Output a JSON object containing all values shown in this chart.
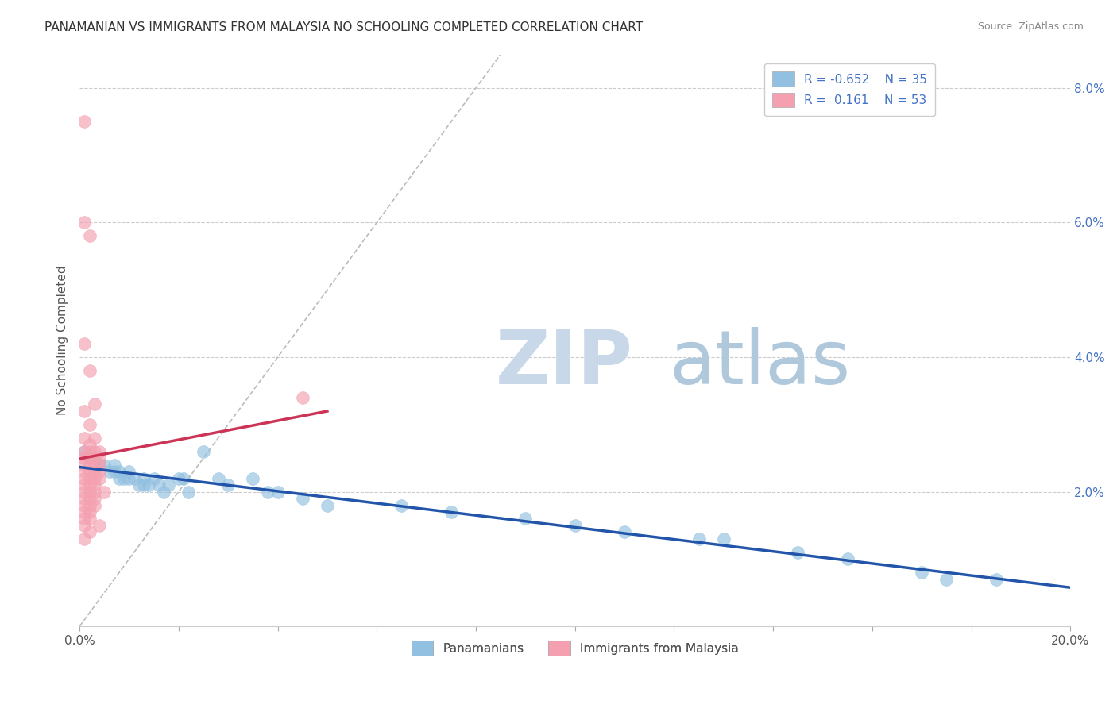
{
  "title": "PANAMANIAN VS IMMIGRANTS FROM MALAYSIA NO SCHOOLING COMPLETED CORRELATION CHART",
  "source": "Source: ZipAtlas.com",
  "ylabel": "No Schooling Completed",
  "xlim": [
    0.0,
    0.2
  ],
  "ylim": [
    0.0,
    0.085
  ],
  "xticks": [
    0.0,
    0.02,
    0.04,
    0.06,
    0.08,
    0.1,
    0.12,
    0.14,
    0.16,
    0.18,
    0.2
  ],
  "yticks": [
    0.0,
    0.02,
    0.04,
    0.06,
    0.08
  ],
  "ytick_labels": [
    "",
    "2.0%",
    "4.0%",
    "6.0%",
    "8.0%"
  ],
  "blue_color": "#92c0e0",
  "blue_line_color": "#2255aa",
  "pink_color": "#f4a0b0",
  "pink_line_color": "#cc3355",
  "diag_color": "#bbbbbb",
  "background_color": "#ffffff",
  "watermark_zip": "ZIP",
  "watermark_atlas": "atlas",
  "watermark_color_zip": "#c8d8e8",
  "watermark_color_atlas": "#b0c8dc",
  "title_fontsize": 11,
  "axis_label_color": "#4472c4",
  "grid_color": "#cccccc",
  "blue_scatter": [
    [
      0.001,
      0.026
    ],
    [
      0.002,
      0.025
    ],
    [
      0.003,
      0.025
    ],
    [
      0.004,
      0.024
    ],
    [
      0.005,
      0.024
    ],
    [
      0.006,
      0.023
    ],
    [
      0.007,
      0.024
    ],
    [
      0.007,
      0.023
    ],
    [
      0.008,
      0.023
    ],
    [
      0.008,
      0.022
    ],
    [
      0.009,
      0.022
    ],
    [
      0.01,
      0.022
    ],
    [
      0.01,
      0.023
    ],
    [
      0.011,
      0.022
    ],
    [
      0.012,
      0.021
    ],
    [
      0.013,
      0.022
    ],
    [
      0.013,
      0.021
    ],
    [
      0.014,
      0.021
    ],
    [
      0.015,
      0.022
    ],
    [
      0.016,
      0.021
    ],
    [
      0.017,
      0.02
    ],
    [
      0.018,
      0.021
    ],
    [
      0.02,
      0.022
    ],
    [
      0.021,
      0.022
    ],
    [
      0.022,
      0.02
    ],
    [
      0.025,
      0.026
    ],
    [
      0.028,
      0.022
    ],
    [
      0.03,
      0.021
    ],
    [
      0.035,
      0.022
    ],
    [
      0.038,
      0.02
    ],
    [
      0.04,
      0.02
    ],
    [
      0.045,
      0.019
    ],
    [
      0.05,
      0.018
    ],
    [
      0.065,
      0.018
    ],
    [
      0.075,
      0.017
    ],
    [
      0.09,
      0.016
    ],
    [
      0.1,
      0.015
    ],
    [
      0.11,
      0.014
    ],
    [
      0.125,
      0.013
    ],
    [
      0.13,
      0.013
    ],
    [
      0.145,
      0.011
    ],
    [
      0.155,
      0.01
    ],
    [
      0.17,
      0.008
    ],
    [
      0.175,
      0.007
    ],
    [
      0.185,
      0.007
    ]
  ],
  "pink_scatter": [
    [
      0.001,
      0.075
    ],
    [
      0.001,
      0.06
    ],
    [
      0.002,
      0.058
    ],
    [
      0.001,
      0.042
    ],
    [
      0.002,
      0.038
    ],
    [
      0.001,
      0.032
    ],
    [
      0.002,
      0.03
    ],
    [
      0.003,
      0.033
    ],
    [
      0.001,
      0.028
    ],
    [
      0.002,
      0.027
    ],
    [
      0.003,
      0.028
    ],
    [
      0.001,
      0.026
    ],
    [
      0.002,
      0.026
    ],
    [
      0.003,
      0.026
    ],
    [
      0.004,
      0.026
    ],
    [
      0.001,
      0.025
    ],
    [
      0.002,
      0.025
    ],
    [
      0.003,
      0.025
    ],
    [
      0.004,
      0.025
    ],
    [
      0.001,
      0.024
    ],
    [
      0.002,
      0.024
    ],
    [
      0.003,
      0.024
    ],
    [
      0.004,
      0.024
    ],
    [
      0.001,
      0.023
    ],
    [
      0.002,
      0.023
    ],
    [
      0.003,
      0.023
    ],
    [
      0.004,
      0.023
    ],
    [
      0.001,
      0.022
    ],
    [
      0.002,
      0.022
    ],
    [
      0.003,
      0.022
    ],
    [
      0.004,
      0.022
    ],
    [
      0.001,
      0.021
    ],
    [
      0.002,
      0.021
    ],
    [
      0.003,
      0.021
    ],
    [
      0.001,
      0.02
    ],
    [
      0.002,
      0.02
    ],
    [
      0.003,
      0.02
    ],
    [
      0.001,
      0.019
    ],
    [
      0.002,
      0.019
    ],
    [
      0.003,
      0.019
    ],
    [
      0.001,
      0.018
    ],
    [
      0.002,
      0.018
    ],
    [
      0.003,
      0.018
    ],
    [
      0.001,
      0.017
    ],
    [
      0.002,
      0.017
    ],
    [
      0.001,
      0.016
    ],
    [
      0.002,
      0.016
    ],
    [
      0.001,
      0.015
    ],
    [
      0.004,
      0.015
    ],
    [
      0.001,
      0.013
    ],
    [
      0.002,
      0.014
    ],
    [
      0.045,
      0.034
    ],
    [
      0.005,
      0.02
    ]
  ]
}
